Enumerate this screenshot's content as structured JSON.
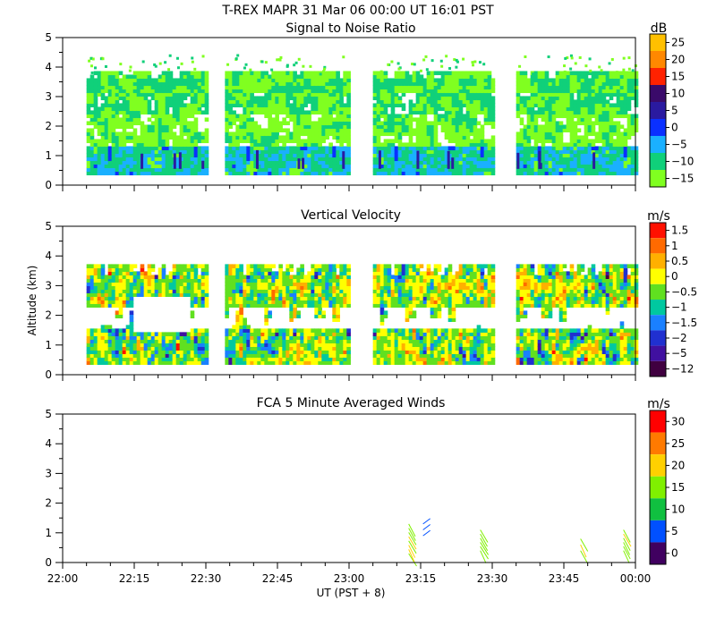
{
  "title": "T-REX   MAPR 31 Mar 06   00:00 UT   16:01   PST",
  "xlabel": "UT  (PST + 8)",
  "ylabel": "Altitude (km)",
  "x_ticks": [
    "22:00",
    "22:15",
    "22:30",
    "22:45",
    "23:00",
    "23:15",
    "23:30",
    "23:45",
    "00:00"
  ],
  "y_ticks": [
    "0",
    "1",
    "2",
    "3",
    "4",
    "5"
  ],
  "chart_data": [
    {
      "type": "heatmap",
      "title": "Signal to Noise Ratio",
      "xlabel": "UT  (PST + 8)",
      "ylabel": "Altitude (km)",
      "xlim_minutes_from_2200": [
        0,
        120
      ],
      "ylim": [
        0,
        5
      ],
      "colorbar": {
        "unit": "dB",
        "labels": [
          "25",
          "20",
          "15",
          "10",
          "5",
          "0",
          "−5",
          "−10",
          "−15"
        ],
        "colors": [
          "#ffc000",
          "#ff8800",
          "#ff2200",
          "#3a0a6a",
          "#2a1aa0",
          "#0a30ff",
          "#1ab0ff",
          "#10d07a",
          "#80ff20"
        ]
      },
      "data_blocks": [
        {
          "start_min": 5,
          "end_min": 30,
          "alt_top_km": 3.8,
          "alt_bottom_km": 0.35
        },
        {
          "start_min": 34,
          "end_min": 60,
          "alt_top_km": 3.8,
          "alt_bottom_km": 0.35
        },
        {
          "start_min": 65,
          "end_min": 90,
          "alt_top_km": 3.8,
          "alt_bottom_km": 0.35
        },
        {
          "start_min": 95,
          "end_min": 120,
          "alt_top_km": 3.8,
          "alt_bottom_km": 0.35
        }
      ]
    },
    {
      "type": "heatmap",
      "title": "Vertical Velocity",
      "xlabel": "UT  (PST + 8)",
      "ylabel": "Altitude (km)",
      "xlim_minutes_from_2200": [
        0,
        120
      ],
      "ylim": [
        0,
        5
      ],
      "colorbar": {
        "unit": "m/s",
        "labels": [
          "1.5",
          "1",
          "0.5",
          "0",
          "−0.5",
          "−1",
          "−1.5",
          "−2",
          "−5",
          "−12"
        ],
        "colors": [
          "#ff1000",
          "#ff6a00",
          "#ffb000",
          "#ffff00",
          "#60e020",
          "#00c8a0",
          "#1a80ff",
          "#2030d0",
          "#4010a0",
          "#400040"
        ]
      },
      "data_blocks": [
        {
          "start_min": 5,
          "end_min": 30,
          "alt_top_km": 3.7,
          "alt_bottom_km": 0.35
        },
        {
          "start_min": 34,
          "end_min": 60,
          "alt_top_km": 3.7,
          "alt_bottom_km": 0.35
        },
        {
          "start_min": 65,
          "end_min": 90,
          "alt_top_km": 3.7,
          "alt_bottom_km": 0.35
        },
        {
          "start_min": 95,
          "end_min": 120,
          "alt_top_km": 3.7,
          "alt_bottom_km": 0.35
        }
      ]
    },
    {
      "type": "scatter",
      "title": "FCA 5 Minute Averaged Winds",
      "xlabel": "UT  (PST + 8)",
      "ylabel": "Altitude (km)",
      "xlim_minutes_from_2200": [
        0,
        120
      ],
      "ylim": [
        0,
        5
      ],
      "colorbar": {
        "unit": "m/s",
        "labels": [
          "30",
          "25",
          "20",
          "15",
          "10",
          "5",
          "0"
        ],
        "colors": [
          "#ff0000",
          "#ff7a00",
          "#ffd000",
          "#80f000",
          "#10c040",
          "#0050ff",
          "#400060"
        ]
      },
      "wind_profiles": [
        {
          "time_min": 72.5,
          "alt_bottom_km": 0.3,
          "alt_top_km": 1.3
        },
        {
          "time_min": 75.5,
          "alt_bottom_km": 0.9,
          "alt_top_km": 1.3
        },
        {
          "time_min": 87.5,
          "alt_bottom_km": 0.4,
          "alt_top_km": 1.1
        },
        {
          "time_min": 108.5,
          "alt_bottom_km": 0.4,
          "alt_top_km": 0.8
        },
        {
          "time_min": 117.5,
          "alt_bottom_km": 0.4,
          "alt_top_km": 1.1
        }
      ]
    }
  ]
}
